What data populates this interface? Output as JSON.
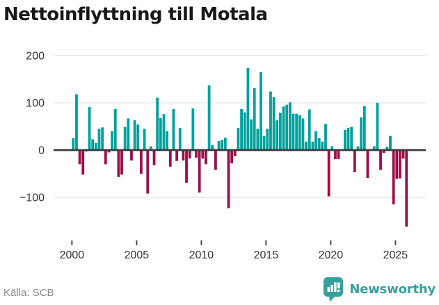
{
  "footer": {
    "source": "Källa: SCB",
    "brand": "Newsworthy"
  },
  "colors": {
    "positive_bar": "#00a19c",
    "negative_bar": "#9f0e47",
    "grid": "#e8e8e8",
    "zero_axis": "#3b3b3b",
    "axis_text": "#333333",
    "title_text": "#181818",
    "source_text": "#8a8a8a",
    "brand_teal": "#37a09d"
  },
  "chart_data": {
    "type": "bar",
    "title": "Nettoinflyttning till Motala",
    "frequency": "quarterly",
    "start": "2000-Q1",
    "xlabel": "",
    "ylabel": "",
    "ylim": [
      -180,
      215
    ],
    "grid": "horizontal",
    "legend": "none",
    "y_tick_values": [
      200,
      100,
      0,
      -100
    ],
    "y_tick_labels": [
      "200",
      "100",
      "0",
      "−100"
    ],
    "x_tick_years": [
      2000,
      2005,
      2010,
      2015,
      2020,
      2025
    ],
    "x_tick_labels": [
      "2000",
      "2005",
      "2010",
      "2015",
      "2020",
      "2025"
    ],
    "series": [
      {
        "year": 2000,
        "values": [
          25,
          118,
          -30,
          -52
        ]
      },
      {
        "year": 2001,
        "values": [
          -3,
          91,
          23,
          15
        ]
      },
      {
        "year": 2002,
        "values": [
          45,
          48,
          -30,
          -5
        ]
      },
      {
        "year": 2003,
        "values": [
          40,
          87,
          -57,
          -52
        ]
      },
      {
        "year": 2004,
        "values": [
          49,
          67,
          -22,
          63
        ]
      },
      {
        "year": 2005,
        "values": [
          54,
          -50,
          45,
          -92
        ]
      },
      {
        "year": 2006,
        "values": [
          8,
          -32,
          111,
          68
        ]
      },
      {
        "year": 2007,
        "values": [
          76,
          40,
          -35,
          87
        ]
      },
      {
        "year": 2008,
        "values": [
          -23,
          47,
          -22,
          -69
        ]
      },
      {
        "year": 2009,
        "values": [
          -18,
          88,
          -16,
          -90
        ]
      },
      {
        "year": 2010,
        "values": [
          -18,
          -30,
          137,
          11
        ]
      },
      {
        "year": 2011,
        "values": [
          -42,
          19,
          21,
          26
        ]
      },
      {
        "year": 2012,
        "values": [
          -123,
          -28,
          -13,
          47
        ]
      },
      {
        "year": 2013,
        "values": [
          87,
          80,
          174,
          65
        ]
      },
      {
        "year": 2014,
        "values": [
          131,
          45,
          165,
          30
        ]
      },
      {
        "year": 2015,
        "values": [
          45,
          124,
          112,
          63
        ]
      },
      {
        "year": 2016,
        "values": [
          79,
          92,
          96,
          101
        ]
      },
      {
        "year": 2017,
        "values": [
          77,
          77,
          74,
          67
        ]
      },
      {
        "year": 2018,
        "values": [
          18,
          86,
          18,
          40
        ]
      },
      {
        "year": 2019,
        "values": [
          25,
          18,
          55,
          -98
        ]
      },
      {
        "year": 2020,
        "values": [
          8,
          -19,
          -19,
          2
        ]
      },
      {
        "year": 2021,
        "values": [
          43,
          47,
          49,
          -47
        ]
      },
      {
        "year": 2022,
        "values": [
          8,
          69,
          93,
          -59
        ]
      },
      {
        "year": 2023,
        "values": [
          2,
          8,
          100,
          -42
        ]
      },
      {
        "year": 2024,
        "values": [
          -6,
          7,
          30,
          -115
        ]
      },
      {
        "year": 2025,
        "values": [
          -61,
          -60,
          -18,
          -162
        ]
      }
    ]
  }
}
